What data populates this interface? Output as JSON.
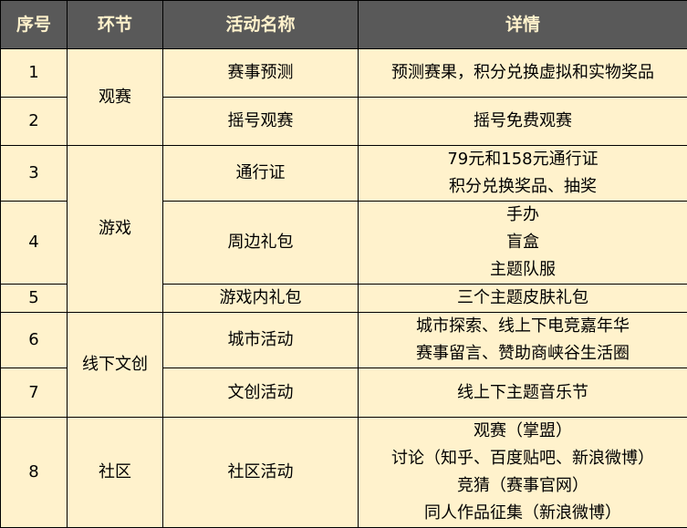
{
  "colors": {
    "header_bg": "#595959",
    "header_text": "#fff2cc",
    "body_bg": "#fff2cc",
    "border": "#000000"
  },
  "headers": [
    "序号",
    "环节",
    "活动名称",
    "详情"
  ],
  "segments": {
    "s1": "观赛",
    "s2": "游戏",
    "s3": "线下文创",
    "s4": "社区"
  },
  "rows": [
    {
      "no": "1",
      "activity": "赛事预测",
      "details": [
        "预测赛果，积分兑换虚拟和实物奖品"
      ]
    },
    {
      "no": "2",
      "activity": "摇号观赛",
      "details": [
        "摇号免费观赛"
      ]
    },
    {
      "no": "3",
      "activity": "通行证",
      "details": [
        "79元和158元通行证",
        "积分兑换奖品、抽奖"
      ]
    },
    {
      "no": "4",
      "activity": "周边礼包",
      "details": [
        "手办",
        "盲盒",
        "主题队服"
      ]
    },
    {
      "no": "5",
      "activity": "游戏内礼包",
      "details": [
        "三个主题皮肤礼包"
      ]
    },
    {
      "no": "6",
      "activity": "城市活动",
      "details": [
        "城市探索、线上下电竞嘉年华",
        "赛事留言、赞助商峡谷生活圈"
      ]
    },
    {
      "no": "7",
      "activity": "文创活动",
      "details": [
        "线上下主题音乐节"
      ]
    },
    {
      "no": "8",
      "activity": "社区活动",
      "details": [
        "观赛（掌盟）",
        "讨论（知乎、百度贴吧、新浪微博）",
        "竞猜（赛事官网）",
        "同人作品征集（新浪微博）"
      ]
    }
  ]
}
